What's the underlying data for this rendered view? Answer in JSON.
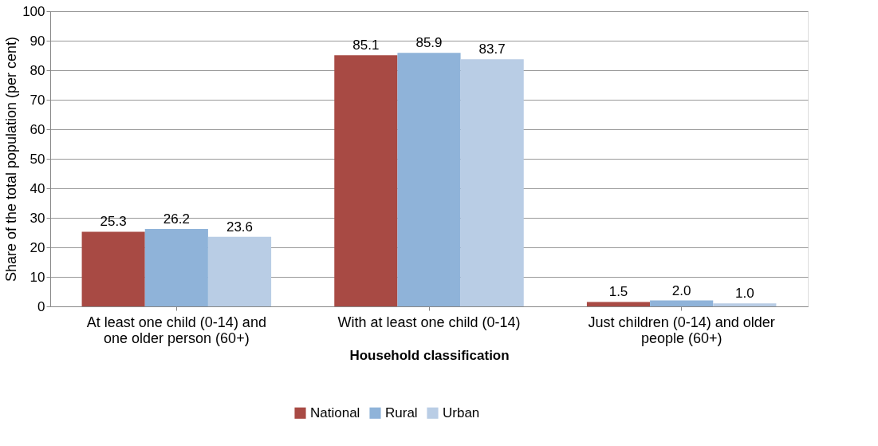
{
  "chart_data": {
    "type": "bar",
    "xlabel": "Household classification",
    "ylabel": "Share of the total population (per cent)",
    "categories": [
      "At least one child (0-14) and one older person (60+)",
      "With at least one child (0-14)",
      "Just children (0-14) and older people (60+)"
    ],
    "series": [
      {
        "name": "National",
        "color": "#a84a44",
        "values": [
          25.3,
          85.1,
          1.5
        ],
        "value_labels": [
          "25.3",
          "85.1",
          "1.5"
        ]
      },
      {
        "name": "Rural",
        "color": "#8fb3d9",
        "values": [
          26.2,
          85.9,
          2.0
        ],
        "value_labels": [
          "26.2",
          "85.9",
          "2.0"
        ]
      },
      {
        "name": "Urban",
        "color": "#b9cde5",
        "values": [
          23.6,
          83.7,
          1.0
        ],
        "value_labels": [
          "23.6",
          "83.7",
          "1.0"
        ]
      }
    ],
    "ylim": [
      0,
      100
    ],
    "yticks": [
      0,
      10,
      20,
      30,
      40,
      50,
      60,
      70,
      80,
      90,
      100
    ],
    "grid": "y",
    "legend": "bottom"
  }
}
